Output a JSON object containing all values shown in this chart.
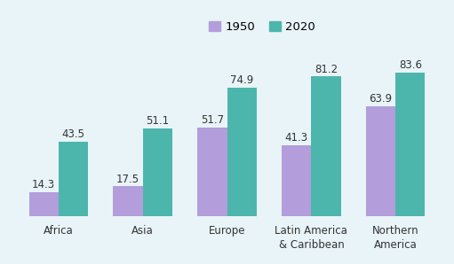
{
  "categories": [
    "Africa",
    "Asia",
    "Europe",
    "Latin America\n& Caribbean",
    "Northern\nAmerica"
  ],
  "values_1950": [
    14.3,
    17.5,
    51.7,
    41.3,
    63.9
  ],
  "values_2020": [
    43.5,
    51.1,
    74.9,
    81.2,
    83.6
  ],
  "color_1950": "#b39ddb",
  "color_2020": "#4db6ac",
  "background_color": "#e8f4f8",
  "bar_width": 0.35,
  "legend_labels": [
    "1950",
    "2020"
  ],
  "ylim": [
    0,
    98
  ],
  "value_fontsize": 8.5,
  "tick_fontsize": 8.5,
  "legend_fontsize": 9.5
}
